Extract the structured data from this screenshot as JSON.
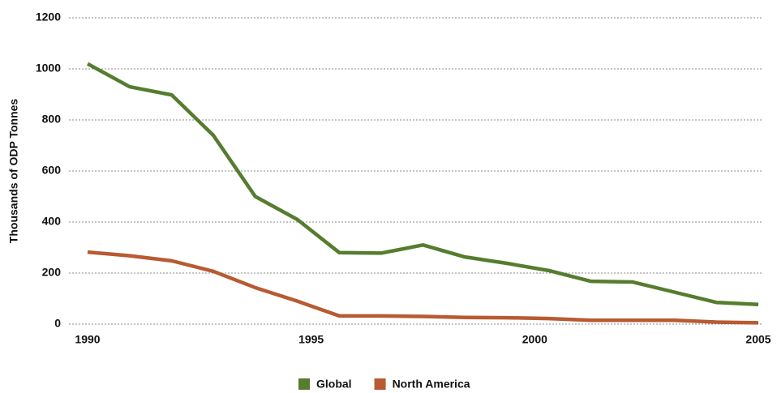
{
  "chart_data": {
    "type": "line",
    "y_label": "Thousands of ODP Tonnes",
    "x": [
      1990,
      1990.94,
      1991.88,
      1992.81,
      1993.75,
      1994.69,
      1995.63,
      1996.56,
      1997.5,
      1998.44,
      1999.38,
      2000.31,
      2001.25,
      2002.19,
      2003.13,
      2004.06,
      2005
    ],
    "series": [
      {
        "name": "Global",
        "color": "#567d2f",
        "values": [
          1020,
          930,
          898,
          740,
          500,
          410,
          280,
          278,
          310,
          263,
          238,
          210,
          168,
          165,
          125,
          85,
          77
        ]
      },
      {
        "name": "North America",
        "color": "#b85a32",
        "values": [
          282,
          268,
          248,
          207,
          143,
          90,
          32,
          32,
          30,
          26,
          25,
          22,
          15,
          15,
          15,
          8,
          5
        ]
      }
    ],
    "xlim": [
      1990,
      2005
    ],
    "xticks": [
      1990,
      1995,
      2000,
      2005
    ],
    "ylim": [
      0,
      1200
    ],
    "yticks": [
      0,
      200,
      400,
      600,
      800,
      1000,
      1200
    ],
    "grid": true,
    "legend": "bottom"
  }
}
